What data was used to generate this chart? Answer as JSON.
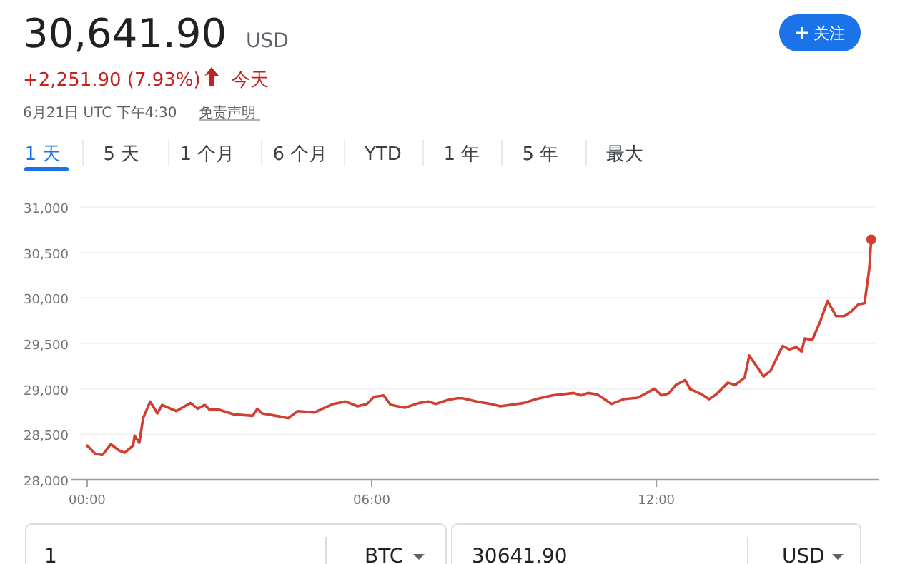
{
  "chart_data": {
    "type": "line",
    "title": "30,641.90",
    "annotations": [
      "USD",
      "+2,251.90 (7.93%)",
      "今天",
      "6月21日 UTC 下午4:30",
      "免责声明",
      "关注",
      "1 天",
      "5 天",
      "1 个月",
      "6 个月",
      "YTD",
      "1 年",
      "5 年",
      "最大",
      "1",
      "BTC",
      "30641.90",
      "USD"
    ],
    "series": [
      {
        "color": "#d23f31",
        "x": [
          0,
          0.17,
          0.32,
          0.5,
          0.67,
          0.79,
          0.97,
          1.0,
          1.1,
          1.18,
          1.33,
          1.48,
          1.58,
          1.88,
          2.18,
          2.33,
          2.48,
          2.58,
          2.78,
          3.09,
          3.49,
          3.59,
          3.69,
          4.09,
          4.24,
          4.44,
          4.79,
          5.19,
          5.45,
          5.7,
          5.9,
          6.05,
          6.25,
          6.4,
          6.7,
          7.0,
          7.2,
          7.35,
          7.6,
          7.8,
          7.91,
          8.21,
          8.51,
          8.71,
          9.21,
          9.46,
          9.81,
          10.26,
          10.41,
          10.56,
          10.76,
          11.06,
          11.31,
          11.61,
          11.96,
          12.11,
          12.26,
          12.41,
          12.61,
          12.71,
          12.96,
          13.11,
          13.26,
          13.51,
          13.66,
          13.86,
          13.96,
          14.26,
          14.41,
          14.66,
          14.81,
          14.96,
          15.06,
          15.13,
          15.29,
          15.46,
          15.61,
          15.79,
          15.96,
          16.11,
          16.26,
          16.39,
          16.49,
          16.53
        ],
        "values": [
          28376,
          28287,
          28271,
          28391,
          28323,
          28297,
          28376,
          28485,
          28407,
          28678,
          28861,
          28730,
          28824,
          28756,
          28845,
          28783,
          28824,
          28772,
          28772,
          28720,
          28704,
          28783,
          28730,
          28694,
          28678,
          28756,
          28741,
          28835,
          28861,
          28809,
          28835,
          28913,
          28929,
          28824,
          28793,
          28845,
          28861,
          28835,
          28877,
          28897,
          28897,
          28861,
          28835,
          28809,
          28845,
          28887,
          28929,
          28955,
          28929,
          28955,
          28939,
          28835,
          28887,
          28903,
          29002,
          28929,
          28950,
          29043,
          29096,
          28998,
          28939,
          28887,
          28939,
          29069,
          29043,
          29122,
          29367,
          29137,
          29200,
          29471,
          29435,
          29461,
          29409,
          29555,
          29539,
          29748,
          29967,
          29800,
          29800,
          29852,
          29930,
          29941,
          30322,
          30641.9
        ]
      },
      {
        "type": "scatter",
        "color": "#d23f31",
        "x": [
          16.53
        ],
        "values": [
          30641.9
        ]
      }
    ],
    "xlim": [
      -0.33,
      16.7
    ],
    "ylim": [
      28000,
      31000
    ],
    "xticks": [
      {
        "value": 0,
        "label": "00:00"
      },
      {
        "value": 6,
        "label": "06:00"
      },
      {
        "value": 12,
        "label": "12:00"
      }
    ],
    "yticks": [
      {
        "value": 28000,
        "label": "28,000"
      },
      {
        "value": 28500,
        "label": "28,500"
      },
      {
        "value": 29000,
        "label": "29,000"
      },
      {
        "value": 29500,
        "label": "29,500"
      },
      {
        "value": 30000,
        "label": "30,000"
      },
      {
        "value": 30500,
        "label": "30,500"
      },
      {
        "value": 31000,
        "label": "31,000"
      }
    ],
    "grid": "y"
  }
}
